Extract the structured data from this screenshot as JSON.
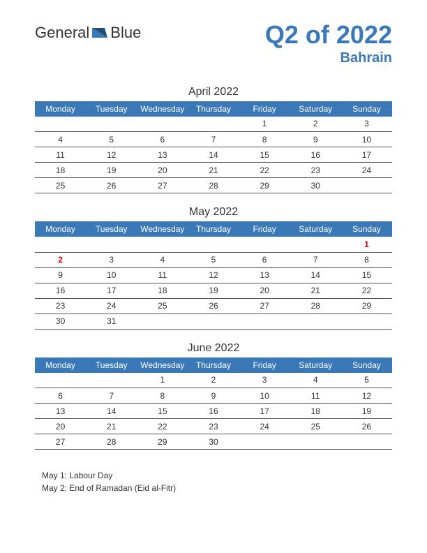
{
  "logo": {
    "text1": "General",
    "text2": "Blue"
  },
  "title": "Q2 of 2022",
  "subtitle": "Bahrain",
  "colors": {
    "accent": "#3a78b8",
    "holiday": "#cc0000",
    "text": "#333333",
    "border": "#555555",
    "background": "#ffffff"
  },
  "day_headers": [
    "Monday",
    "Tuesday",
    "Wednesday",
    "Thursday",
    "Friday",
    "Saturday",
    "Sunday"
  ],
  "months": [
    {
      "title": "April 2022",
      "weeks": [
        [
          "",
          "",
          "",
          "",
          "1",
          "2",
          "3"
        ],
        [
          "4",
          "5",
          "6",
          "7",
          "8",
          "9",
          "10"
        ],
        [
          "11",
          "12",
          "13",
          "14",
          "15",
          "16",
          "17"
        ],
        [
          "18",
          "19",
          "20",
          "21",
          "22",
          "23",
          "24"
        ],
        [
          "25",
          "26",
          "27",
          "28",
          "29",
          "30",
          ""
        ]
      ],
      "holidays": []
    },
    {
      "title": "May 2022",
      "weeks": [
        [
          "",
          "",
          "",
          "",
          "",
          "",
          "1"
        ],
        [
          "2",
          "3",
          "4",
          "5",
          "6",
          "7",
          "8"
        ],
        [
          "9",
          "10",
          "11",
          "12",
          "13",
          "14",
          "15"
        ],
        [
          "16",
          "17",
          "18",
          "19",
          "20",
          "21",
          "22"
        ],
        [
          "23",
          "24",
          "25",
          "26",
          "27",
          "28",
          "29"
        ],
        [
          "30",
          "31",
          "",
          "",
          "",
          "",
          ""
        ]
      ],
      "holidays": [
        "1",
        "2"
      ]
    },
    {
      "title": "June 2022",
      "weeks": [
        [
          "",
          "",
          "1",
          "2",
          "3",
          "4",
          "5"
        ],
        [
          "6",
          "7",
          "8",
          "9",
          "10",
          "11",
          "12"
        ],
        [
          "13",
          "14",
          "15",
          "16",
          "17",
          "18",
          "19"
        ],
        [
          "20",
          "21",
          "22",
          "23",
          "24",
          "25",
          "26"
        ],
        [
          "27",
          "28",
          "29",
          "30",
          "",
          "",
          ""
        ]
      ],
      "holidays": []
    }
  ],
  "notes": [
    "May 1: Labour Day",
    "May 2: End of Ramadan (Eid al-Fitr)"
  ]
}
